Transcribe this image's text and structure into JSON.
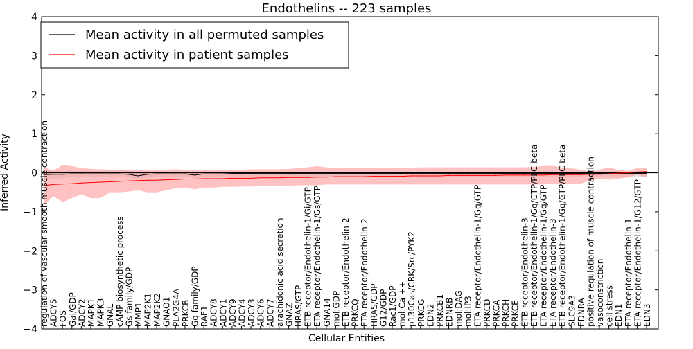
{
  "chart_data": {
    "type": "line",
    "title": "Endothelins -- 223 samples",
    "xlabel": "Cellular Entities",
    "ylabel": "Inferred Activity",
    "ylim": [
      -4,
      4
    ],
    "yticks": [
      "4",
      "3",
      "2",
      "1",
      "0",
      "−1",
      "−2",
      "−3",
      "−4"
    ],
    "grid": false,
    "legend_position": "upper-left",
    "colors": {
      "permuted": "#000000",
      "patient": "#ff0000",
      "patient_band": "#ff9999",
      "permuted_band": "#cccccc"
    },
    "categories": [
      "regulation of vascular smooth muscle contraction",
      "ADCY5",
      "FOS",
      "Gai/GDP",
      "ADCY2",
      "MAPK1",
      "MAPK3",
      "GNAL",
      "cAMP biosynthetic process",
      "Gs family/GDP",
      "MMP1",
      "MAP2K1",
      "MAP2K2",
      "GNAO1",
      "PLA2G4A",
      "PRKCB",
      "Gq family/GDP",
      "RAF1",
      "ADCY8",
      "ADCY1",
      "ADCY9",
      "ADCY4",
      "ADCY3",
      "ADCY6",
      "ADCY7",
      "arachidonic acid secretion",
      "GNAZ",
      "HRAS/GTP",
      "ETB receptor/Endothelin-1/Gi/GTP",
      "ETA receptor/Endothelin-1/Gs/GTP",
      "GNA14",
      "mol:GDP",
      "ETB receptor/Endothelin-2",
      "PRKCQ",
      "ETA receptor/Endothelin-2",
      "HRAS/GDP",
      "G12/GDP",
      "Rac1/GDP",
      "mol:Ca ++",
      "p130Cas/CRK/Src/PYK2",
      "PRKCG",
      "EDN2",
      "PRKCB1",
      "EDNRB",
      "mol:DAG",
      "mol:IP3",
      "ETA receptor/Endothelin-1/Gq/GTP",
      "PRKCD",
      "PRKCA",
      "PRKCH",
      "PRKCE",
      "ETB receptor/Endothelin-3",
      "ETB receptor/Endothelin-1/Gq/GTP/PLC beta",
      "ETA receptor/Endothelin-1/Gq/GTP",
      "ETA receptor/Endothelin-3",
      "ETB receptor/Endothelin-1/Gq/GTP/PLC beta",
      "SLC9A3",
      "EDNRA",
      "positive regulation of muscle contraction",
      "vasoconstriction",
      "cell stress",
      "EDN1",
      "ETA receptor/Endothelin-1",
      "ETA receptor/Endothelin-1/G12/GTP",
      "EDN3"
    ],
    "series": [
      {
        "name": "Mean activity in all permuted samples",
        "values": [
          -0.05,
          -0.04,
          -0.04,
          -0.03,
          -0.03,
          -0.03,
          -0.03,
          -0.03,
          -0.03,
          -0.04,
          -0.08,
          -0.04,
          -0.03,
          -0.03,
          -0.03,
          -0.03,
          -0.06,
          -0.03,
          -0.03,
          -0.03,
          -0.02,
          -0.02,
          -0.02,
          -0.02,
          -0.02,
          -0.02,
          -0.02,
          -0.02,
          -0.02,
          -0.02,
          -0.02,
          -0.02,
          -0.02,
          -0.02,
          -0.02,
          -0.02,
          -0.02,
          -0.02,
          -0.02,
          -0.02,
          -0.02,
          -0.02,
          -0.02,
          -0.02,
          -0.02,
          -0.02,
          -0.02,
          -0.02,
          -0.02,
          -0.02,
          -0.02,
          -0.02,
          -0.02,
          -0.02,
          -0.02,
          -0.02,
          -0.02,
          -0.02,
          -0.02,
          -0.02,
          -0.02,
          -0.02,
          -0.02,
          -0.02,
          -0.02
        ],
        "upper": [
          0.08,
          0.06,
          0.05,
          0.05,
          0.05,
          0.05,
          0.05,
          0.06,
          0.06,
          0.05,
          0.02,
          0.03,
          0.03,
          0.03,
          0.03,
          0.03,
          0.01,
          0.03,
          0.03,
          0.03,
          0.03,
          0.03,
          0.03,
          0.03,
          0.03,
          0.03,
          0.03,
          0.03,
          0.03,
          0.03,
          0.03,
          0.03,
          0.03,
          0.03,
          0.03,
          0.03,
          0.03,
          0.03,
          0.03,
          0.03,
          0.03,
          0.03,
          0.03,
          0.03,
          0.03,
          0.03,
          0.03,
          0.03,
          0.03,
          0.03,
          0.03,
          0.03,
          0.03,
          0.03,
          0.03,
          0.03,
          0.03,
          0.03,
          0.03,
          0.03,
          0.03,
          0.03,
          0.03,
          0.03,
          0.03
        ],
        "lower": [
          -0.2,
          -0.15,
          -0.14,
          -0.12,
          -0.12,
          -0.11,
          -0.11,
          -0.1,
          -0.1,
          -0.12,
          -0.16,
          -0.12,
          -0.11,
          -0.1,
          -0.1,
          -0.1,
          -0.14,
          -0.1,
          -0.1,
          -0.1,
          -0.1,
          -0.1,
          -0.1,
          -0.1,
          -0.1,
          -0.1,
          -0.1,
          -0.1,
          -0.1,
          -0.1,
          -0.1,
          -0.1,
          -0.1,
          -0.1,
          -0.1,
          -0.1,
          -0.1,
          -0.1,
          -0.1,
          -0.1,
          -0.1,
          -0.1,
          -0.1,
          -0.1,
          -0.1,
          -0.1,
          -0.1,
          -0.1,
          -0.1,
          -0.1,
          -0.1,
          -0.1,
          -0.1,
          -0.1,
          -0.1,
          -0.1,
          -0.1,
          -0.1,
          -0.1,
          -0.1,
          -0.1,
          -0.1,
          -0.1,
          -0.1,
          -0.1
        ]
      },
      {
        "name": "Mean activity in patient samples",
        "values": [
          -0.33,
          -0.3,
          -0.29,
          -0.28,
          -0.26,
          -0.25,
          -0.24,
          -0.23,
          -0.22,
          -0.21,
          -0.2,
          -0.19,
          -0.19,
          -0.18,
          -0.17,
          -0.16,
          -0.16,
          -0.15,
          -0.15,
          -0.15,
          -0.14,
          -0.14,
          -0.14,
          -0.13,
          -0.13,
          -0.13,
          -0.12,
          -0.12,
          -0.12,
          -0.11,
          -0.11,
          -0.1,
          -0.1,
          -0.1,
          -0.1,
          -0.09,
          -0.09,
          -0.09,
          -0.09,
          -0.08,
          -0.08,
          -0.08,
          -0.08,
          -0.07,
          -0.07,
          -0.07,
          -0.07,
          -0.07,
          -0.07,
          -0.06,
          -0.06,
          -0.06,
          -0.06,
          -0.06,
          -0.05,
          -0.05,
          -0.05,
          -0.05,
          -0.04,
          -0.04,
          -0.03,
          -0.01,
          0.0,
          0.02,
          0.03
        ],
        "upper": [
          0.15,
          0.05,
          0.2,
          0.17,
          0.12,
          0.1,
          0.09,
          0.08,
          0.08,
          0.07,
          0.07,
          0.08,
          0.08,
          0.08,
          0.09,
          0.08,
          0.08,
          0.08,
          0.08,
          0.08,
          0.08,
          0.08,
          0.09,
          0.09,
          0.09,
          0.09,
          0.1,
          0.12,
          0.14,
          0.17,
          0.14,
          0.12,
          0.12,
          0.12,
          0.12,
          0.12,
          0.12,
          0.13,
          0.13,
          0.13,
          0.14,
          0.14,
          0.14,
          0.14,
          0.14,
          0.14,
          0.14,
          0.14,
          0.14,
          0.14,
          0.14,
          0.14,
          0.15,
          0.17,
          0.18,
          0.14,
          0.12,
          0.08,
          0.03,
          0.08,
          0.14,
          0.08,
          0.05,
          0.12,
          0.14
        ],
        "lower": [
          -0.85,
          -0.6,
          -0.75,
          -0.65,
          -0.55,
          -0.65,
          -0.65,
          -0.5,
          -0.5,
          -0.48,
          -0.45,
          -0.5,
          -0.5,
          -0.45,
          -0.4,
          -0.38,
          -0.42,
          -0.38,
          -0.38,
          -0.36,
          -0.36,
          -0.35,
          -0.35,
          -0.34,
          -0.34,
          -0.33,
          -0.33,
          -0.32,
          -0.32,
          -0.32,
          -0.3,
          -0.3,
          -0.3,
          -0.3,
          -0.3,
          -0.3,
          -0.3,
          -0.3,
          -0.3,
          -0.3,
          -0.3,
          -0.3,
          -0.3,
          -0.3,
          -0.3,
          -0.3,
          -0.3,
          -0.3,
          -0.3,
          -0.3,
          -0.3,
          -0.3,
          -0.3,
          -0.3,
          -0.28,
          -0.28,
          -0.28,
          -0.28,
          -0.2,
          -0.15,
          -0.18,
          -0.15,
          -0.12,
          -0.05,
          -0.12
        ]
      }
    ]
  }
}
